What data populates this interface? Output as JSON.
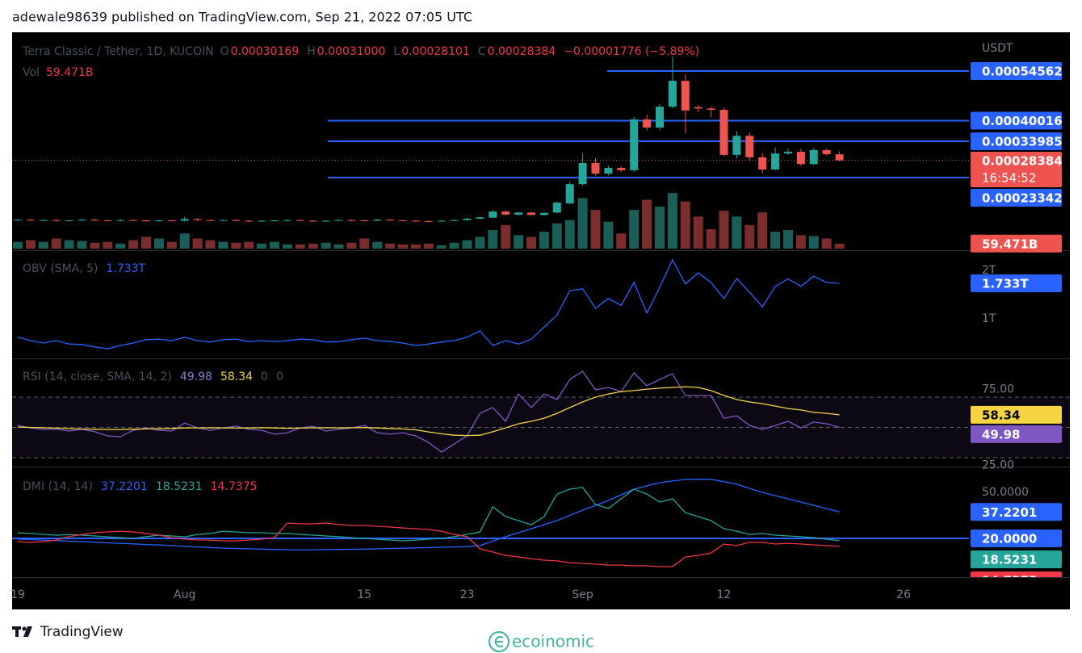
{
  "header": {
    "text": "adewale98639 published on TradingView.com, Sep 21, 2022 07:05 UTC"
  },
  "x_axis": {
    "categories": [
      "19",
      null,
      null,
      null,
      null,
      null,
      null,
      null,
      null,
      null,
      null,
      null,
      null,
      "Aug",
      null,
      null,
      null,
      null,
      null,
      null,
      null,
      null,
      null,
      null,
      null,
      null,
      null,
      "15",
      null,
      null,
      null,
      null,
      null,
      null,
      null,
      "23",
      null,
      null,
      null,
      null,
      null,
      null,
      null,
      null,
      "Sep",
      null,
      null,
      null,
      null,
      null,
      null,
      null,
      null,
      null,
      null,
      "12",
      null,
      null,
      null,
      null,
      null,
      null,
      null,
      null,
      null,
      null,
      null,
      null,
      null,
      "26",
      null,
      null,
      null,
      null,
      null
    ]
  },
  "main": {
    "legend": {
      "symbol": "Terra Classic / Tether, 1D, KUCOIN",
      "ohlc": [
        {
          "letter": "O",
          "value": "0.00030169"
        },
        {
          "letter": "H",
          "value": "0.00031000"
        },
        {
          "letter": "L",
          "value": "0.00028101"
        },
        {
          "letter": "C",
          "value": "0.00028384"
        }
      ],
      "change": "−0.00001776 (−5.89%)",
      "vol_label": "Vol",
      "vol_value": "59.471B"
    },
    "unit": "USDT",
    "ylim": [
      2.53e-05,
      0.0006592
    ],
    "vol_ylim": [
      0,
      700
    ],
    "levels": [
      0.00054562,
      0.00040016,
      0.00033985,
      0.00023342
    ],
    "last_price": 0.00028384,
    "countdown": "16:54:52",
    "last_volume": {
      "value": 59.471,
      "label": "59.471B"
    },
    "colors": {
      "up": "#26a69a",
      "down": "#ef5350",
      "vol_up": "#1b5e58",
      "vol_down": "#7b2c2c",
      "level": "#2962ff"
    },
    "candles": {
      "open": [
        0.000108,
        0.00011,
        0.000108,
        0.000109,
        0.000107,
        0.000108,
        0.00011,
        0.000108,
        0.000107,
        0.000109,
        0.000108,
        0.000106,
        0.000108,
        0.000107,
        0.000112,
        0.000109,
        0.000108,
        0.000109,
        0.000107,
        0.000106,
        0.000107,
        0.000108,
        0.000109,
        0.000107,
        0.000106,
        0.000107,
        0.000109,
        0.000108,
        0.000107,
        0.00011,
        0.000108,
        0.000107,
        0.000106,
        0.000105,
        0.000107,
        0.000109,
        0.000113,
        0.000116,
        0.000134,
        0.000125,
        0.000131,
        0.000124,
        0.000131,
        0.000158,
        0.000214,
        0.000276,
        0.000245,
        0.000262,
        0.000255,
        0.000404,
        0.00038,
        0.000441,
        0.000517,
        0.00044,
        0.000436,
        0.000432,
        0.0003,
        0.000356,
        0.000293,
        0.000257,
        0.000304,
        0.000309,
        0.000273,
        0.000314,
        0.00030169,
        null,
        null,
        null,
        null,
        null,
        null,
        null,
        null,
        null,
        null
      ],
      "high": [
        0.000112,
        0.000112,
        0.000111,
        0.000111,
        0.00011,
        0.000112,
        0.000112,
        0.00011,
        0.000111,
        0.000111,
        0.00011,
        0.00011,
        0.00011,
        0.000118,
        0.000114,
        0.000111,
        0.000111,
        0.000111,
        0.000109,
        0.000109,
        0.00011,
        0.000111,
        0.000111,
        0.000109,
        0.000109,
        0.000111,
        0.000111,
        0.00011,
        0.000112,
        0.000112,
        0.00011,
        0.000109,
        0.000108,
        0.000109,
        0.000111,
        0.000115,
        0.000119,
        0.000138,
        0.000137,
        0.000133,
        0.000133,
        0.000132,
        0.000163,
        0.000221,
        0.000304,
        0.00029,
        0.000268,
        0.000266,
        0.000412,
        0.000418,
        0.00045,
        0.000588,
        0.000536,
        0.000446,
        0.00044,
        0.000438,
        0.00037,
        0.000365,
        0.000305,
        0.000322,
        0.000318,
        0.000318,
        0.00032,
        0.000318,
        0.00031,
        null,
        null,
        null,
        null,
        null,
        null,
        null,
        null,
        null,
        null
      ],
      "low": [
        0.000106,
        0.000106,
        0.000106,
        0.000105,
        0.000105,
        0.000106,
        0.000106,
        0.000105,
        0.000105,
        0.000106,
        0.000104,
        0.000104,
        0.000105,
        0.000105,
        0.000107,
        0.000106,
        0.000106,
        0.000105,
        0.000104,
        0.000104,
        0.000105,
        0.000106,
        0.000105,
        0.000104,
        0.000104,
        0.000105,
        0.000106,
        0.000105,
        0.000105,
        0.000106,
        0.000105,
        0.000104,
        0.000103,
        0.000103,
        0.000105,
        0.000107,
        0.000111,
        0.000114,
        0.000123,
        0.000122,
        0.000122,
        0.000121,
        0.000129,
        0.000155,
        0.00021,
        0.00024,
        0.00024,
        0.00025,
        0.00025,
        0.000372,
        0.000372,
        0.000437,
        0.000364,
        0.000425,
        0.00041,
        0.000296,
        0.00029,
        0.000282,
        0.000246,
        0.000255,
        0.0003,
        0.000268,
        0.00027,
        0.000298,
        0.00028101,
        null,
        null,
        null,
        null,
        null,
        null,
        null,
        null,
        null,
        null
      ],
      "close": [
        0.00011,
        0.000108,
        0.000109,
        0.000107,
        0.000108,
        0.00011,
        0.000108,
        0.000107,
        0.000109,
        0.000108,
        0.000106,
        0.000108,
        0.000107,
        0.000112,
        0.000109,
        0.000108,
        0.000109,
        0.000107,
        0.000106,
        0.000107,
        0.000108,
        0.000109,
        0.000107,
        0.000106,
        0.000107,
        0.000109,
        0.000108,
        0.000107,
        0.00011,
        0.000108,
        0.000107,
        0.000106,
        0.000105,
        0.000107,
        0.000109,
        0.000113,
        0.000117,
        0.000134,
        0.000125,
        0.000131,
        0.000124,
        0.00013,
        0.00016,
        0.000214,
        0.000276,
        0.000245,
        0.000262,
        0.000255,
        0.000404,
        0.00038,
        0.000441,
        0.000517,
        0.00043,
        0.000436,
        0.000432,
        0.0003,
        0.000356,
        0.000293,
        0.000257,
        0.000304,
        0.000309,
        0.000273,
        0.000314,
        0.000302,
        0.00028384,
        null,
        null,
        null,
        null,
        null,
        null,
        null,
        null,
        null,
        null
      ],
      "volume": [
        80,
        100,
        80,
        120,
        100,
        90,
        70,
        80,
        60,
        100,
        140,
        120,
        80,
        180,
        120,
        100,
        80,
        70,
        80,
        60,
        80,
        50,
        50,
        60,
        70,
        50,
        70,
        120,
        80,
        60,
        50,
        50,
        60,
        40,
        70,
        100,
        140,
        220,
        280,
        160,
        140,
        200,
        300,
        340,
        600,
        460,
        320,
        180,
        460,
        580,
        500,
        660,
        560,
        380,
        230,
        450,
        380,
        280,
        430,
        200,
        220,
        160,
        150,
        120,
        59.471,
        null,
        null,
        null,
        null,
        null,
        null,
        null,
        null,
        null,
        null
      ]
    }
  },
  "obv": {
    "legend": {
      "name": "OBV (SMA, 5)",
      "value": "1.733T"
    },
    "color": "#2962ff",
    "ylim": [
      0.167,
      2.417
    ],
    "yticks": [
      {
        "value": 2,
        "label": "2T"
      },
      {
        "value": 1,
        "label": "1T"
      }
    ],
    "last": {
      "value": 1.733,
      "label": "1.733T"
    },
    "values": [
      0.62,
      0.55,
      0.5,
      0.55,
      0.48,
      0.47,
      0.42,
      0.38,
      0.45,
      0.5,
      0.57,
      0.58,
      0.55,
      0.62,
      0.55,
      0.52,
      0.57,
      0.58,
      0.53,
      0.55,
      0.53,
      0.55,
      0.58,
      0.57,
      0.52,
      0.53,
      0.57,
      0.6,
      0.55,
      0.53,
      0.5,
      0.45,
      0.48,
      0.52,
      0.55,
      0.62,
      0.75,
      0.45,
      0.55,
      0.48,
      0.58,
      0.83,
      1.08,
      1.58,
      1.62,
      1.22,
      1.42,
      1.28,
      1.75,
      1.12,
      1.65,
      2.22,
      1.72,
      1.95,
      1.75,
      1.42,
      1.83,
      1.55,
      1.25,
      1.67,
      1.83,
      1.67,
      1.88,
      1.75,
      1.733,
      null,
      null,
      null,
      null,
      null,
      null,
      null,
      null,
      null,
      null
    ]
  },
  "rsi": {
    "legend": {
      "name": "RSI (14, close, SMA, 14, 2)",
      "rsi": "49.98",
      "sma": "58.34",
      "extra": [
        "0",
        "0"
      ]
    },
    "colors": {
      "rsi": "#7e57c2",
      "sma": "#f5d442",
      "band": "#7e57c2"
    },
    "ylim": [
      24.13,
      95.07
    ],
    "yticks": [
      {
        "value": 75,
        "label": "75.00"
      },
      {
        "value": 25,
        "label": "25.00"
      }
    ],
    "levels": [
      70,
      50,
      30
    ],
    "last_rsi": 49.98,
    "last_sma": 58.34,
    "rsi": [
      51.3,
      49.7,
      48.7,
      48.7,
      47.6,
      48.7,
      47.1,
      44.4,
      43.9,
      48.1,
      49.7,
      48.1,
      47.6,
      52.9,
      49.7,
      48.1,
      49.7,
      50.8,
      48.7,
      48.1,
      45.5,
      46.5,
      49.7,
      50.8,
      47.6,
      48.7,
      49.7,
      51.3,
      46.5,
      45.5,
      46.5,
      44.4,
      40.1,
      33.7,
      39.1,
      44.4,
      59.3,
      63.1,
      54.0,
      72.1,
      63.1,
      72.1,
      68.4,
      81.7,
      87.1,
      74.8,
      76.4,
      73.7,
      86.0,
      77.5,
      81.7,
      85.5,
      71.1,
      71.1,
      71.1,
      56.1,
      57.7,
      51.3,
      48.7,
      51.3,
      54.0,
      49.7,
      53.5,
      52.4,
      49.98,
      null,
      null,
      null,
      null,
      null,
      null,
      null,
      null,
      null,
      null
    ],
    "sma": [
      50.2,
      50.0,
      49.8,
      49.5,
      49.2,
      49.0,
      48.8,
      48.6,
      48.6,
      48.8,
      49.0,
      49.1,
      49.3,
      49.6,
      49.7,
      49.8,
      49.7,
      49.5,
      49.6,
      49.8,
      49.6,
      49.4,
      49.5,
      49.7,
      49.8,
      49.7,
      49.8,
      49.9,
      49.6,
      49.3,
      49.0,
      48.4,
      47.0,
      45.8,
      44.8,
      44.6,
      44.8,
      47.1,
      49.7,
      52.4,
      54.0,
      56.1,
      59.3,
      63.1,
      66.8,
      70.0,
      72.1,
      73.7,
      74.3,
      75.3,
      75.9,
      76.4,
      76.9,
      76.4,
      74.3,
      71.1,
      68.4,
      66.8,
      65.7,
      64.1,
      62.5,
      61.5,
      59.9,
      59.3,
      58.34,
      null,
      null,
      null,
      null,
      null,
      null,
      null,
      null,
      null,
      null
    ]
  },
  "dmi": {
    "legend": {
      "name": "DMI (14, 14)",
      "values": [
        "37.2201",
        "18.5231",
        "14.7375"
      ]
    },
    "ylim": [
      -5.26,
      66.84
    ],
    "yticks": [
      {
        "value": 50,
        "label": "50.0000"
      }
    ],
    "hline": {
      "value": 20,
      "label": "20.0000"
    },
    "series": [
      {
        "color": "#2962ff",
        "last": 37.2201,
        "values": [
          19.5,
          19.2,
          18.9,
          18.6,
          18.2,
          17.9,
          17.5,
          17.1,
          16.8,
          16.4,
          16.0,
          15.7,
          15.3,
          14.8,
          14.4,
          14.0,
          13.7,
          13.4,
          13.2,
          13.0,
          12.8,
          12.6,
          12.6,
          12.6,
          12.7,
          12.8,
          12.9,
          13.0,
          13.2,
          13.4,
          13.6,
          13.8,
          14.0,
          14.2,
          14.4,
          14.6,
          15.3,
          18.2,
          21.1,
          23.7,
          26.3,
          29.0,
          31.6,
          35.0,
          38.4,
          41.5,
          44.7,
          48.4,
          52.1,
          54.2,
          56.3,
          57.4,
          58.4,
          58.6,
          58.4,
          57.0,
          55.3,
          52.6,
          50.0,
          47.9,
          45.8,
          43.7,
          41.6,
          39.4,
          37.2201,
          null,
          null,
          null,
          null,
          null,
          null,
          null,
          null,
          null,
          null
        ]
      },
      {
        "color": "#26a69a",
        "last": 18.5231,
        "values": [
          23.7,
          23.2,
          22.6,
          22.1,
          22.4,
          22.1,
          21.6,
          21.0,
          20.5,
          20.0,
          21.1,
          22.1,
          21.6,
          21.0,
          22.6,
          23.2,
          24.7,
          24.2,
          23.7,
          23.7,
          23.2,
          23.2,
          22.6,
          22.1,
          21.6,
          21.1,
          20.5,
          20.0,
          19.5,
          18.9,
          18.4,
          18.9,
          19.5,
          20.0,
          21.1,
          22.6,
          24.2,
          40.5,
          34.2,
          31.6,
          28.9,
          34.2,
          48.9,
          52.1,
          53.2,
          42.1,
          39.5,
          45.8,
          52.1,
          48.9,
          43.7,
          45.8,
          36.8,
          34.2,
          31.6,
          26.3,
          24.7,
          22.6,
          23.2,
          22.1,
          21.6,
          21.1,
          20.5,
          19.5,
          18.5231,
          null,
          null,
          null,
          null,
          null,
          null,
          null,
          null,
          null,
          null
        ]
      },
      {
        "color": "#f23645",
        "last": 14.7375,
        "values": [
          17.9,
          17.4,
          17.9,
          18.9,
          21.1,
          22.6,
          23.7,
          24.2,
          24.7,
          24.2,
          23.2,
          22.1,
          20.5,
          19.5,
          19.0,
          18.9,
          18.4,
          18.4,
          18.9,
          19.5,
          20.5,
          30.0,
          29.5,
          29.5,
          30.0,
          29.0,
          28.4,
          28.4,
          27.9,
          27.4,
          26.8,
          26.3,
          25.8,
          24.7,
          22.6,
          21.1,
          13.2,
          11.1,
          8.9,
          7.9,
          6.8,
          5.8,
          5.3,
          4.2,
          3.7,
          3.2,
          2.6,
          2.6,
          2.1,
          2.1,
          1.6,
          1.6,
          7.9,
          8.9,
          10.5,
          16.3,
          15.3,
          17.4,
          17.4,
          16.3,
          16.8,
          16.3,
          15.8,
          15.3,
          14.7375,
          null,
          null,
          null,
          null,
          null,
          null,
          null,
          null,
          null,
          null
        ]
      }
    ]
  },
  "footer": {
    "brand": "TradingView",
    "watermark": "ecoinomic"
  }
}
